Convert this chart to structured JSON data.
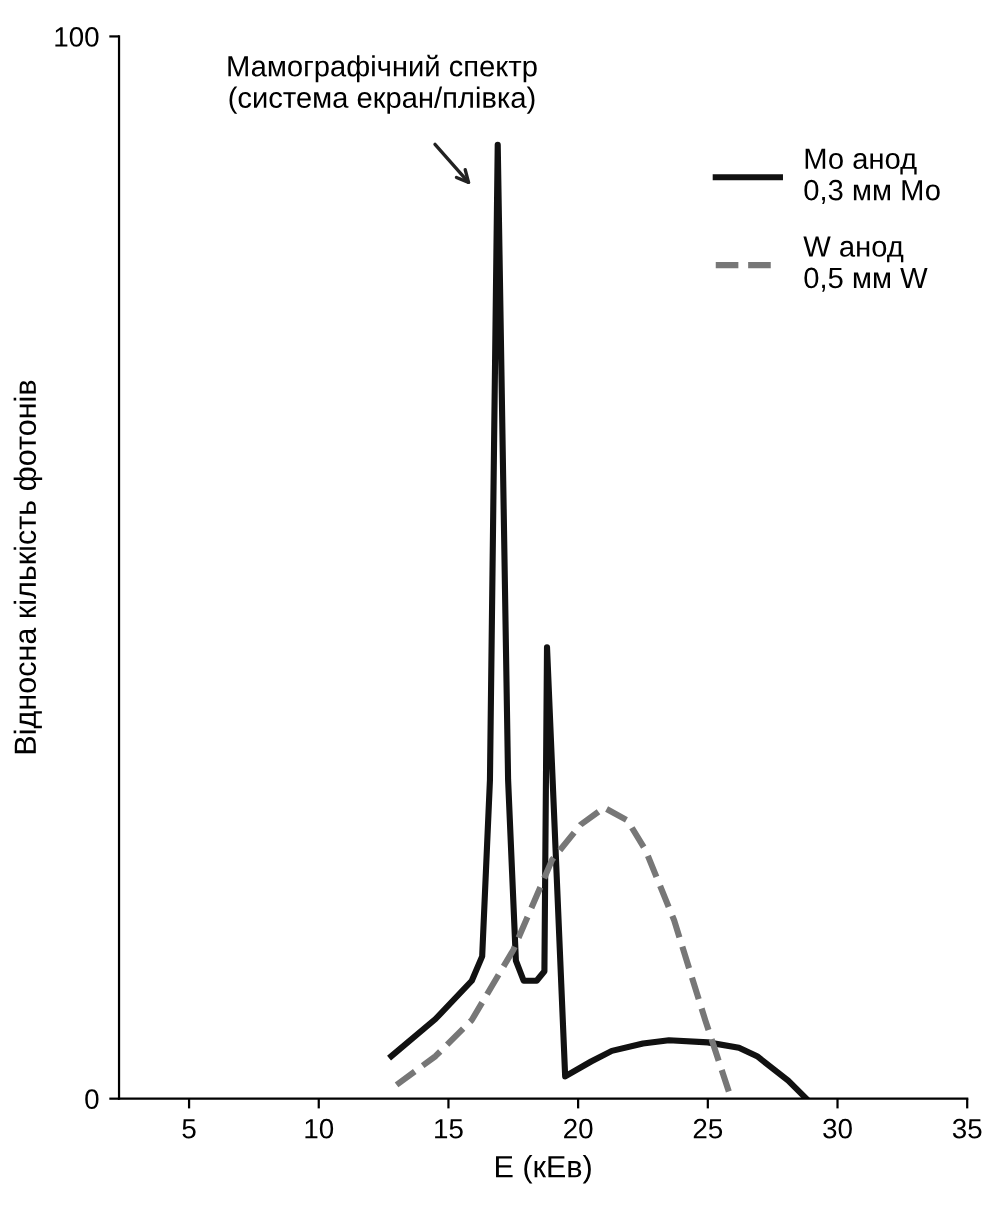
{
  "chart_data": {
    "type": "line",
    "xlabel": "E (кЕв)",
    "ylabel": "Відносна кількість фотонів",
    "xlim": [
      2.3,
      35
    ],
    "xticks": [
      5,
      10,
      15,
      20,
      25,
      30,
      35
    ],
    "ylim": [
      0,
      100
    ],
    "yticks": [
      0,
      100
    ],
    "grid": false,
    "legend": "top right",
    "marker": "none",
    "series": [
      {
        "name": "Мо анод\n0,3 мм Мо",
        "color": "#111111",
        "line_style": "solid",
        "x": [
          12.8,
          14.5,
          15.9,
          16.3,
          16.6,
          16.9,
          17.3,
          17.6,
          17.9,
          18.4,
          18.7,
          18.8,
          19.5,
          20.5,
          21.3,
          22.5,
          23.5,
          25,
          26.2,
          26.9,
          28.1,
          28.8
        ],
        "values": [
          4.0,
          7.5,
          11.1,
          13.4,
          30,
          89.8,
          30,
          13,
          11.1,
          11.1,
          12,
          42.5,
          2.1,
          3.5,
          4.5,
          5.2,
          5.5,
          5.3,
          4.8,
          4.0,
          1.7,
          0
        ]
      },
      {
        "name": "W анод\n0,5 мм W",
        "color": "#777777",
        "line_style": "dashed",
        "x": [
          13.0,
          14.5,
          15.9,
          17.5,
          19.0,
          20.1,
          21.0,
          21.9,
          22.6,
          23.7,
          24.9,
          25.9
        ],
        "values": [
          1.3,
          4.0,
          7.4,
          14,
          22.5,
          25.8,
          27.4,
          26.2,
          23.4,
          16.8,
          7.4,
          0
        ]
      }
    ],
    "annotations": [
      "Мамографічний спектр\n(система екран/плівка)"
    ]
  }
}
